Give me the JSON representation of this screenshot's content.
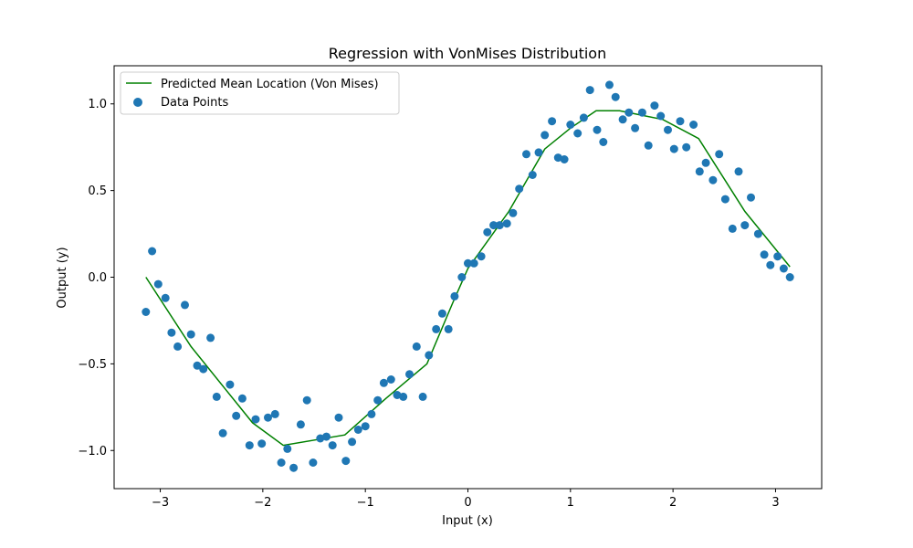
{
  "chart_data": {
    "type": "scatter",
    "title": "Regression with VonMises Distribution",
    "xlabel": "Input (x)",
    "ylabel": "Output (y)",
    "xlim": [
      -3.45,
      3.45
    ],
    "ylim": [
      -1.22,
      1.22
    ],
    "xticks": [
      -3,
      -2,
      -1,
      0,
      1,
      2,
      3
    ],
    "xtick_labels": [
      "−3",
      "−2",
      "−1",
      "0",
      "1",
      "2",
      "3"
    ],
    "yticks": [
      -1.0,
      -0.5,
      0.0,
      0.5,
      1.0
    ],
    "ytick_labels": [
      "−1.0",
      "−0.5",
      "0.0",
      "0.5",
      "1.0"
    ],
    "grid": false,
    "legend_position": "top-left",
    "series": [
      {
        "name": "Predicted Mean Location (Von Mises)",
        "kind": "line",
        "color": "#008000",
        "x": [
          -3.14,
          -2.7,
          -2.1,
          -1.8,
          -1.2,
          -0.8,
          -0.4,
          -0.15,
          0.0,
          0.4,
          0.75,
          1.0,
          1.25,
          1.48,
          1.9,
          2.25,
          2.7,
          3.14
        ],
        "y": [
          0.0,
          -0.4,
          -0.84,
          -0.97,
          -0.91,
          -0.7,
          -0.5,
          -0.15,
          0.05,
          0.38,
          0.74,
          0.86,
          0.96,
          0.96,
          0.91,
          0.8,
          0.38,
          0.06
        ]
      },
      {
        "name": "Data Points",
        "kind": "scatter",
        "color": "#1f77b4",
        "x": [
          -3.14,
          -3.08,
          -3.02,
          -2.95,
          -2.89,
          -2.83,
          -2.76,
          -2.7,
          -2.64,
          -2.58,
          -2.51,
          -2.45,
          -2.39,
          -2.32,
          -2.26,
          -2.2,
          -2.13,
          -2.07,
          -2.01,
          -1.95,
          -1.88,
          -1.82,
          -1.76,
          -1.7,
          -1.63,
          -1.57,
          -1.51,
          -1.44,
          -1.38,
          -1.32,
          -1.26,
          -1.19,
          -1.13,
          -1.07,
          -1.0,
          -0.94,
          -0.88,
          -0.82,
          -0.75,
          -0.69,
          -0.63,
          -0.57,
          -0.5,
          -0.44,
          -0.38,
          -0.31,
          -0.25,
          -0.19,
          -0.13,
          -0.06,
          0.0,
          0.06,
          0.13,
          0.19,
          0.25,
          0.31,
          0.38,
          0.44,
          0.5,
          0.57,
          0.63,
          0.69,
          0.75,
          0.82,
          0.88,
          0.94,
          1.0,
          1.07,
          1.13,
          1.19,
          1.26,
          1.32,
          1.38,
          1.44,
          1.51,
          1.57,
          1.63,
          1.7,
          1.76,
          1.82,
          1.88,
          1.95,
          2.01,
          2.07,
          2.13,
          2.2,
          2.26,
          2.32,
          2.39,
          2.45,
          2.51,
          2.58,
          2.64,
          2.7,
          2.76,
          2.83,
          2.89,
          2.95,
          3.02,
          3.08,
          3.14
        ],
        "y": [
          -0.2,
          0.15,
          -0.04,
          -0.12,
          -0.32,
          -0.4,
          -0.16,
          -0.33,
          -0.51,
          -0.53,
          -0.35,
          -0.69,
          -0.9,
          -0.62,
          -0.8,
          -0.7,
          -0.97,
          -0.82,
          -0.96,
          -0.81,
          -0.79,
          -1.07,
          -0.99,
          -1.1,
          -0.85,
          -0.71,
          -1.07,
          -0.93,
          -0.92,
          -0.97,
          -0.81,
          -1.06,
          -0.95,
          -0.88,
          -0.86,
          -0.79,
          -0.71,
          -0.61,
          -0.59,
          -0.68,
          -0.69,
          -0.56,
          -0.4,
          -0.69,
          -0.45,
          -0.3,
          -0.21,
          -0.3,
          -0.11,
          0.0,
          0.08,
          0.08,
          0.12,
          0.26,
          0.3,
          0.3,
          0.31,
          0.37,
          0.51,
          0.71,
          0.59,
          0.72,
          0.82,
          0.9,
          0.69,
          0.68,
          0.88,
          0.83,
          0.92,
          1.08,
          0.85,
          0.78,
          1.11,
          1.04,
          0.91,
          0.95,
          0.86,
          0.95,
          0.76,
          0.99,
          0.93,
          0.85,
          0.74,
          0.9,
          0.75,
          0.88,
          0.61,
          0.66,
          0.56,
          0.71,
          0.45,
          0.28,
          0.61,
          0.3,
          0.46,
          0.25,
          0.13,
          0.07,
          0.12,
          0.05,
          0.0
        ]
      }
    ]
  }
}
